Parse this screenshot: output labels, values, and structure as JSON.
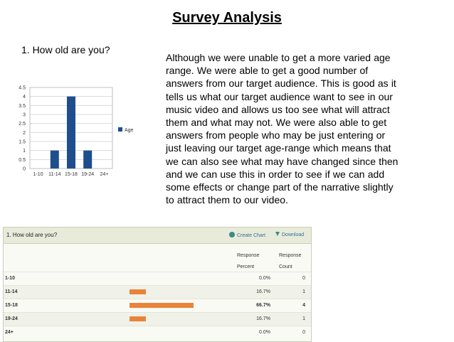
{
  "title": "Survey Analysis",
  "question": "1. How old are you?",
  "paragraph": "Although we were unable to get a more varied age range. We were able to get a good number of answers from our target audience. This is good as it tells us what our target audience want to see in our music video and allows us too see what will attract them and what may not. We were also able to get answers from people who may be just entering or just leaving our target age-range which means that we can also see what may have changed since then and we can use this in order to see if we can add some effects or change part of the narrative slightly to attract them to our video.",
  "chart_data": {
    "type": "bar",
    "categories": [
      "1-10",
      "11-14",
      "15-18",
      "19-24",
      "24+"
    ],
    "series": [
      {
        "name": "Age",
        "values": [
          0,
          1,
          4,
          1,
          0
        ]
      }
    ],
    "ylim": [
      0,
      4.5
    ],
    "yticks": [
      "0",
      "0.5",
      "1",
      "1.5",
      "2",
      "2.5",
      "3",
      "3.5",
      "4",
      "4.5"
    ],
    "grid": true,
    "legend": "right",
    "color": "#1f4e8c"
  },
  "panel": {
    "title": "1. How old are you?",
    "create_chart": "Create Chart",
    "download": "Download",
    "col_percent": [
      "Response",
      "Percent"
    ],
    "col_count": [
      "Response",
      "Count"
    ],
    "rows": [
      {
        "label": "1-10",
        "fraction": 0.0,
        "percent": "0.0%",
        "count": "0"
      },
      {
        "label": "11-14",
        "fraction": 0.167,
        "percent": "16.7%",
        "count": "1"
      },
      {
        "label": "15-18",
        "fraction": 0.667,
        "percent": "66.7%",
        "count": "4"
      },
      {
        "label": "19-24",
        "fraction": 0.167,
        "percent": "16.7%",
        "count": "1"
      },
      {
        "label": "24+",
        "fraction": 0.0,
        "percent": "0.0%",
        "count": "0"
      }
    ],
    "bar_color": "#e9833a",
    "icons": [
      "create-chart-icon",
      "download-arrow-icon"
    ]
  }
}
